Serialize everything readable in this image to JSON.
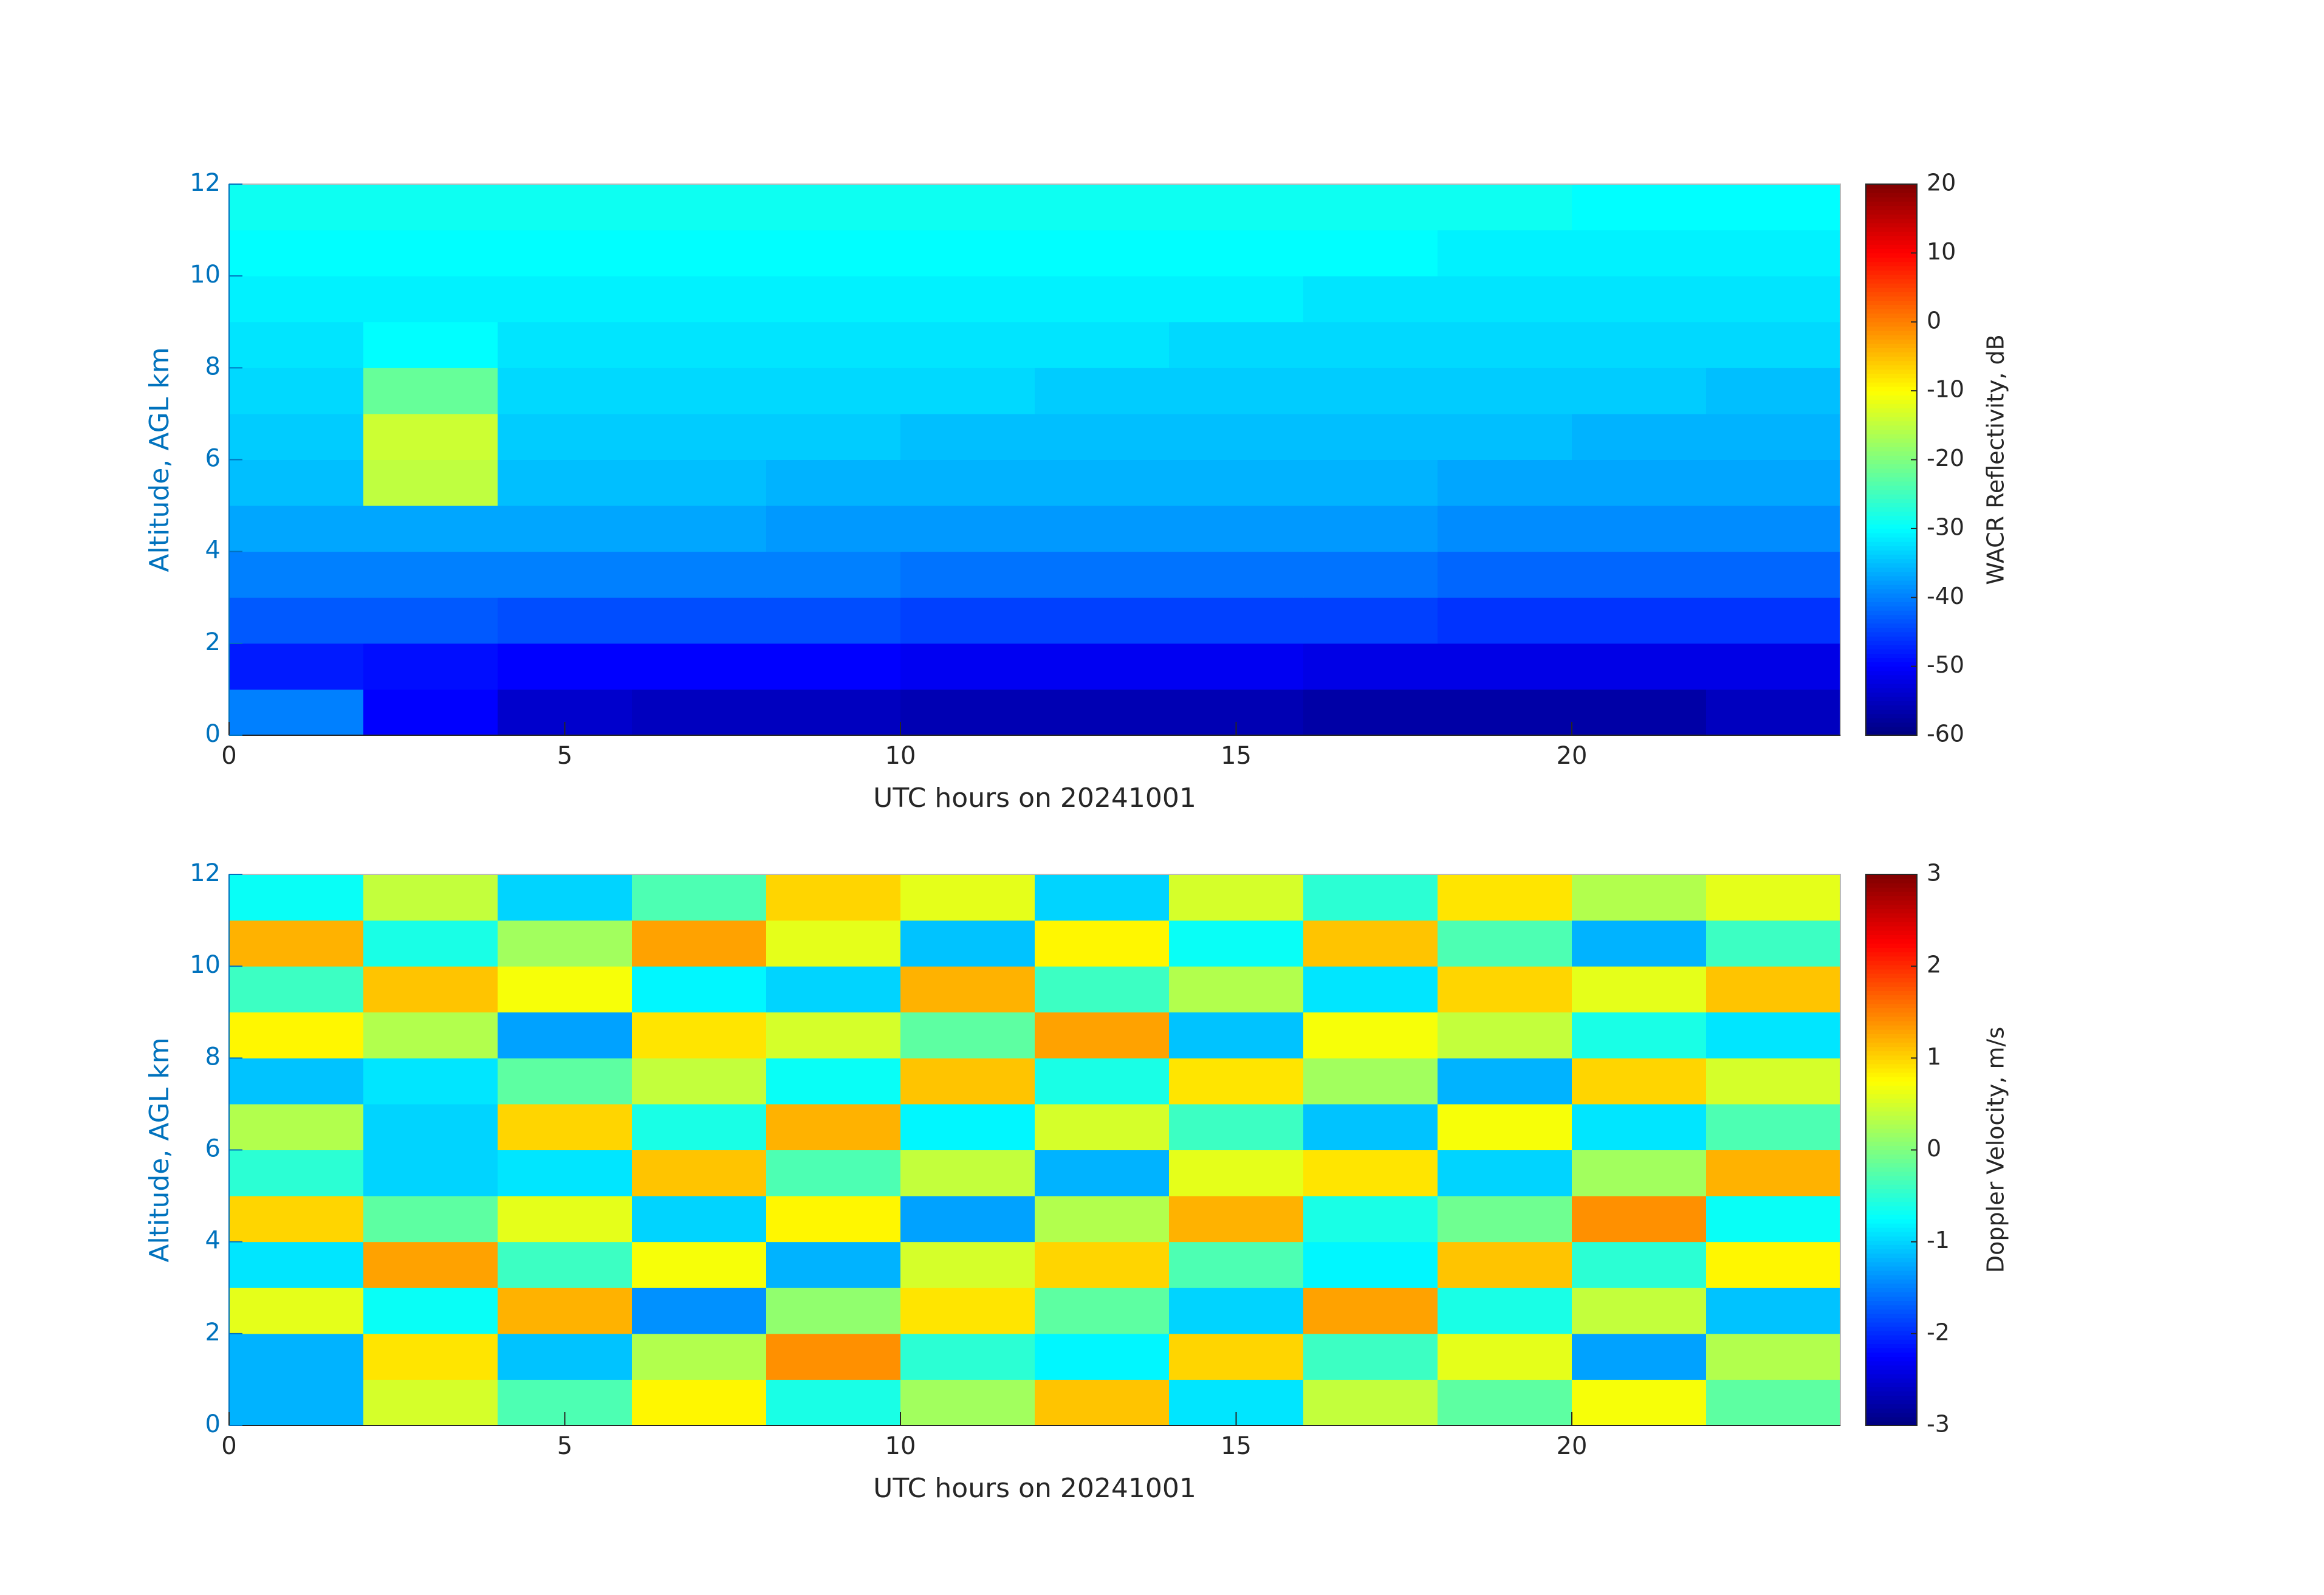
{
  "chart_data": [
    {
      "type": "heatmap",
      "colormap": "jet",
      "xlabel": "UTC hours on 20241001",
      "ylabel": "Altitude, AGL km",
      "colorbar_label": "WACR Reflectivity, dB",
      "xlim": [
        0,
        24
      ],
      "xticks": [
        0,
        5,
        10,
        15,
        20
      ],
      "ylim": [
        0,
        12
      ],
      "yticks": [
        0,
        2,
        4,
        6,
        8,
        10,
        12
      ],
      "clim": [
        -60,
        20
      ],
      "cticks": [
        -60,
        -50,
        -40,
        -30,
        -20,
        -10,
        0,
        10,
        20
      ],
      "x_bins": [
        0,
        2,
        4,
        6,
        8,
        10,
        12,
        14,
        16,
        18,
        20,
        22,
        24
      ],
      "y_bins": [
        0,
        1,
        2,
        3,
        4,
        5,
        6,
        7,
        8,
        9,
        10,
        11,
        12
      ],
      "z": [
        [
          -40,
          -50,
          -54,
          -55,
          -55,
          -56,
          -56,
          -56,
          -57,
          -57,
          -57,
          -55
        ],
        [
          -48,
          -49,
          -50,
          -50,
          -50,
          -51,
          -51,
          -51,
          -52,
          -52,
          -52,
          -52
        ],
        [
          -43,
          -43,
          -44,
          -44,
          -44,
          -45,
          -45,
          -45,
          -45,
          -46,
          -46,
          -46
        ],
        [
          -40,
          -40,
          -40,
          -40,
          -40,
          -41,
          -41,
          -41,
          -41,
          -42,
          -42,
          -42
        ],
        [
          -37,
          -37,
          -37,
          -37,
          -38,
          -38,
          -38,
          -38,
          -38,
          -39,
          -39,
          -39
        ],
        [
          -35,
          -15,
          -35,
          -35,
          -36,
          -36,
          -36,
          -36,
          -36,
          -37,
          -37,
          -37
        ],
        [
          -34,
          -14,
          -34,
          -34,
          -34,
          -35,
          -35,
          -35,
          -35,
          -35,
          -36,
          -36
        ],
        [
          -33,
          -22,
          -33,
          -33,
          -33,
          -33,
          -34,
          -34,
          -34,
          -34,
          -34,
          -35
        ],
        [
          -32,
          -30,
          -32,
          -32,
          -32,
          -32,
          -32,
          -33,
          -33,
          -33,
          -33,
          -33
        ],
        [
          -31,
          -31,
          -31,
          -31,
          -31,
          -31,
          -31,
          -31,
          -32,
          -32,
          -32,
          -32
        ],
        [
          -30,
          -30,
          -30,
          -30,
          -30,
          -30,
          -30,
          -30,
          -30,
          -31,
          -31,
          -31
        ],
        [
          -29,
          -29,
          -29,
          -29,
          -29,
          -29,
          -29,
          -29,
          -29,
          -29,
          -30,
          -30
        ]
      ]
    },
    {
      "type": "heatmap",
      "colormap": "jet",
      "xlabel": "UTC hours on 20241001",
      "ylabel": "Altitude, AGL km",
      "colorbar_label": "Doppler Velocity, m/s",
      "xlim": [
        0,
        24
      ],
      "xticks": [
        0,
        5,
        10,
        15,
        20
      ],
      "ylim": [
        0,
        12
      ],
      "yticks": [
        0,
        2,
        4,
        6,
        8,
        10,
        12
      ],
      "clim": [
        -3,
        3
      ],
      "cticks": [
        -3,
        -2,
        -1,
        0,
        1,
        2,
        3
      ],
      "x_bins": [
        0,
        2,
        4,
        6,
        8,
        10,
        12,
        14,
        16,
        18,
        20,
        22,
        24
      ],
      "y_bins": [
        0,
        1,
        2,
        3,
        4,
        5,
        6,
        7,
        8,
        9,
        10,
        11,
        12
      ],
      "z": [
        [
          -1.2,
          0.5,
          -0.3,
          0.8,
          -0.6,
          0.2,
          1.1,
          -0.9,
          0.4,
          -0.2,
          0.7,
          -0.2
        ],
        [
          -1.2,
          0.9,
          -1.1,
          0.3,
          1.4,
          -0.5,
          -0.8,
          1.0,
          -0.4,
          0.6,
          -1.3,
          0.3
        ],
        [
          0.6,
          -0.7,
          1.2,
          -1.4,
          0.1,
          0.9,
          -0.2,
          -1.0,
          1.3,
          -0.6,
          0.4,
          -1.1
        ],
        [
          -0.9,
          1.3,
          -0.4,
          0.7,
          -1.2,
          0.5,
          1.0,
          -0.3,
          -0.8,
          1.1,
          -0.5,
          0.8
        ],
        [
          1.0,
          -0.2,
          0.6,
          -1.0,
          0.8,
          -1.3,
          0.3,
          1.2,
          -0.6,
          -0.1,
          1.4,
          -0.7
        ],
        [
          -0.5,
          -1.0,
          -0.9,
          1.1,
          -0.3,
          0.4,
          -1.2,
          0.6,
          0.9,
          -1.0,
          0.2,
          1.2
        ],
        [
          0.3,
          -1.0,
          1.0,
          -0.6,
          1.2,
          -0.8,
          0.5,
          -0.4,
          -1.1,
          0.7,
          -0.9,
          -0.3
        ],
        [
          -1.1,
          -0.9,
          -0.2,
          0.4,
          -0.7,
          1.1,
          -0.6,
          0.9,
          0.2,
          -1.2,
          1.0,
          0.5
        ],
        [
          0.8,
          0.3,
          -1.3,
          0.9,
          0.5,
          -0.2,
          1.3,
          -1.1,
          0.7,
          0.4,
          -0.6,
          -0.9
        ],
        [
          -0.4,
          1.1,
          0.7,
          -0.8,
          -1.0,
          1.2,
          -0.4,
          0.3,
          -0.9,
          1.0,
          0.6,
          1.1
        ],
        [
          1.2,
          -0.6,
          0.2,
          1.3,
          0.6,
          -1.1,
          0.8,
          -0.7,
          1.1,
          -0.3,
          -1.2,
          -0.4
        ],
        [
          -0.7,
          0.4,
          -1.0,
          -0.3,
          1.0,
          0.6,
          -1.0,
          0.5,
          -0.5,
          0.9,
          0.3,
          0.6
        ]
      ]
    }
  ]
}
